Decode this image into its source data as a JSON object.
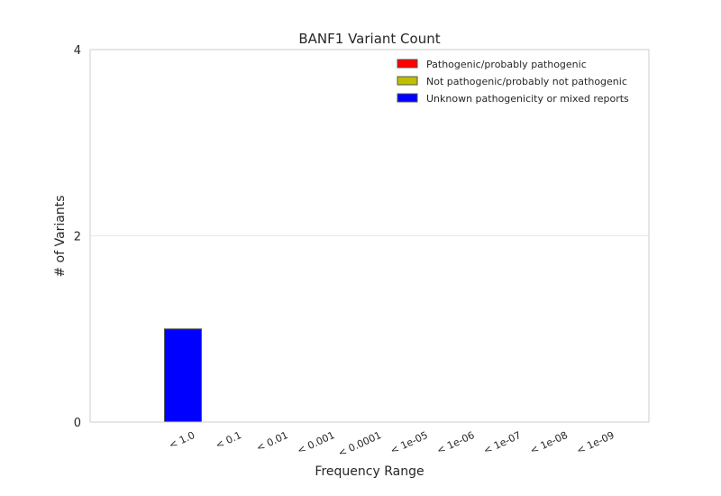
{
  "chart_data": {
    "type": "bar",
    "title": "BANF1 Variant Count",
    "xlabel": "Frequency Range",
    "ylabel": "# of Variants",
    "categories": [
      "< 1.0",
      "< 0.1",
      "< 0.01",
      "< 0.001",
      "< 0.0001",
      "< 1e-05",
      "< 1e-06",
      "< 1e-07",
      "< 1e-08",
      "< 1e-09"
    ],
    "ylim": [
      0,
      4
    ],
    "yticks": [
      "0",
      "2",
      "4"
    ],
    "stacked": true,
    "grid": "horizontal",
    "legend_position": "top-right",
    "series": [
      {
        "name": "Pathogenic/probably pathogenic",
        "color": "#ff0000",
        "values": [
          0,
          0,
          0,
          0,
          0,
          0,
          0,
          0,
          0,
          0
        ]
      },
      {
        "name": "Not pathogenic/probably not pathogenic",
        "color": "#bfbf00",
        "values": [
          0,
          0,
          0,
          0,
          0,
          0,
          0,
          0,
          0,
          0
        ]
      },
      {
        "name": "Unknown pathogenicity or mixed reports",
        "color": "#0000ff",
        "values": [
          1,
          0,
          0,
          0,
          0,
          0,
          0,
          0,
          0,
          0
        ]
      }
    ]
  }
}
